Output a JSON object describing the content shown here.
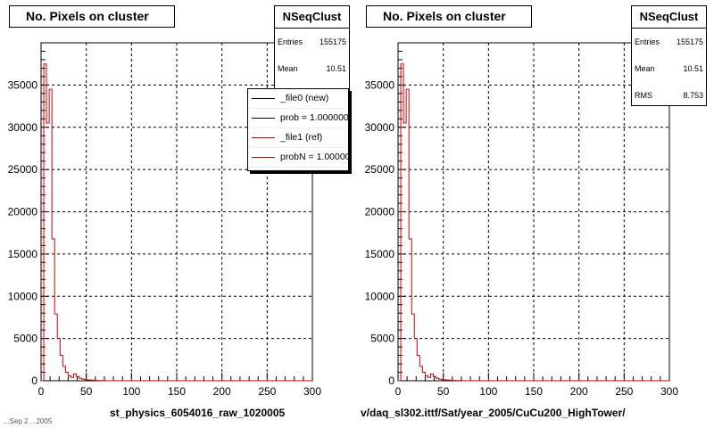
{
  "chart_data": [
    {
      "type": "bar",
      "title": "No. Pixels on cluster",
      "xlabel": "st_physics_6054016_raw_1020005",
      "ylabel": "",
      "xlim": [
        0,
        300
      ],
      "ylim": [
        0,
        40000
      ],
      "grid": true,
      "x_ticks": [
        "0",
        "50",
        "100",
        "150",
        "200",
        "250",
        "300"
      ],
      "y_ticks": [
        "0",
        "5000",
        "10000",
        "15000",
        "20000",
        "25000",
        "30000",
        "35000"
      ],
      "stats": {
        "name": "NSeqClust",
        "entries_label": "Entries",
        "entries": "155175",
        "mean_label": "Mean",
        "mean": "10.51"
      },
      "legend": {
        "placement": "top-right",
        "entries": [
          {
            "label": "_file0 (new)",
            "color": "#000000"
          },
          {
            "label": "prob = 1.000000",
            "color": "#000000"
          },
          {
            "label": "_file1 (ref)",
            "color": "#cc0000"
          },
          {
            "label": "probN = 1.000000",
            "color": "#cc0000"
          }
        ]
      },
      "series": [
        {
          "color": "#cc0000",
          "bin_width": 3,
          "bin_start": 0,
          "values": [
            0,
            37500,
            30500,
            34500,
            16800,
            7900,
            5000,
            3000,
            1700,
            1000,
            600,
            400,
            800,
            500,
            300,
            200,
            150,
            100,
            80,
            60,
            40,
            30,
            20,
            10,
            5,
            0
          ]
        }
      ]
    },
    {
      "type": "bar",
      "title": "No. Pixels on cluster",
      "xlabel": "v/daq_sl302.ittf/Sat/year_2005/CuCu200_HighTower/",
      "ylabel": "",
      "xlim": [
        0,
        300
      ],
      "ylim": [
        0,
        40000
      ],
      "grid": true,
      "x_ticks": [
        "0",
        "50",
        "100",
        "150",
        "200",
        "250",
        "300"
      ],
      "y_ticks": [
        "0",
        "5000",
        "10000",
        "15000",
        "20000",
        "25000",
        "30000",
        "35000"
      ],
      "stats": {
        "name": "NSeqClust",
        "entries_label": "Entries",
        "entries": "155175",
        "mean_label": "Mean",
        "mean": "10.51",
        "rms_label": "RMS",
        "rms": "8.753"
      },
      "series": [
        {
          "color": "#cc0000",
          "bin_width": 3,
          "bin_start": 0,
          "values": [
            0,
            37500,
            30500,
            34500,
            16800,
            7900,
            5000,
            3000,
            1700,
            1000,
            600,
            400,
            800,
            500,
            300,
            200,
            150,
            100,
            80,
            60,
            40,
            30,
            20,
            10,
            5,
            0
          ]
        }
      ]
    }
  ],
  "footer_stamp": "...Sep 2 ...2005"
}
